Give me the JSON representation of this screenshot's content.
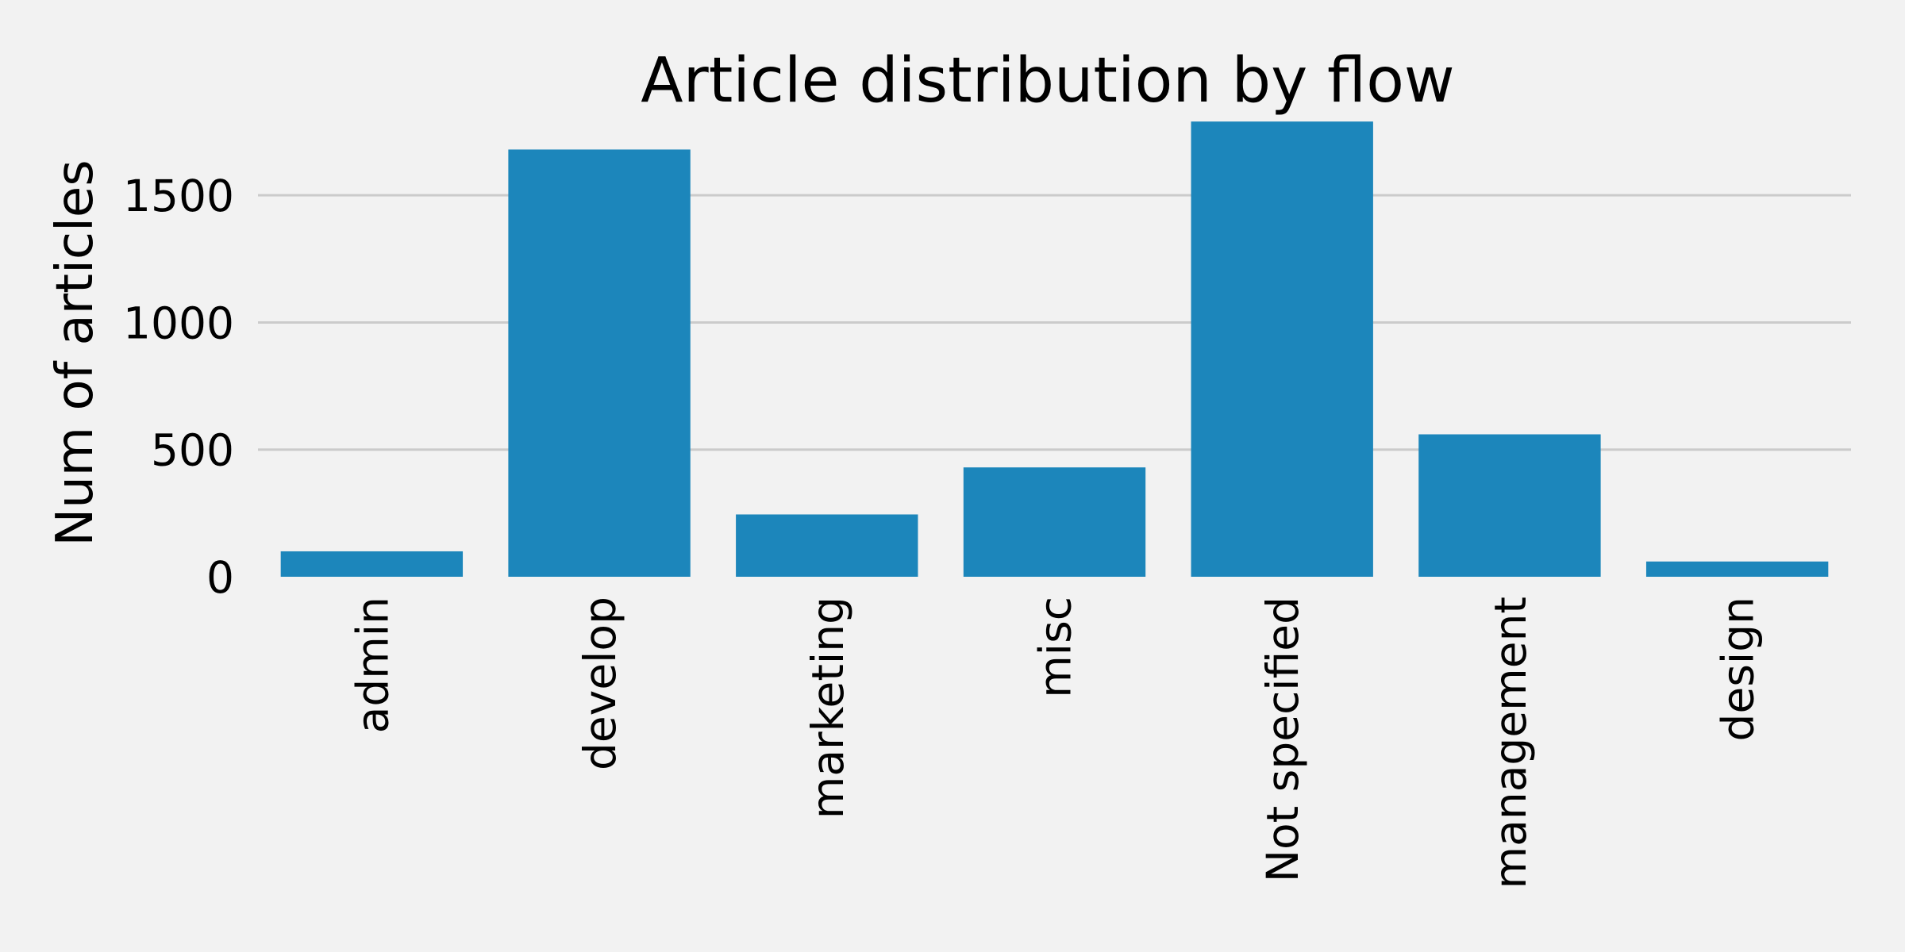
{
  "chart_data": {
    "type": "bar",
    "title": "Article distribution by flow",
    "xlabel": "",
    "ylabel": "Num of articles",
    "categories": [
      "admin",
      "develop",
      "marketing",
      "misc",
      "Not specified",
      "management",
      "design"
    ],
    "values": [
      100,
      1680,
      245,
      430,
      1790,
      560,
      60
    ],
    "ylim": [
      0,
      1800
    ],
    "yticks": [
      0,
      500,
      1000,
      1500
    ],
    "grid": "horizontal",
    "legend": "none",
    "colors": {
      "bar": "#1c86bb",
      "background": "#f2f2f2",
      "grid": "#cbcbcb"
    }
  }
}
